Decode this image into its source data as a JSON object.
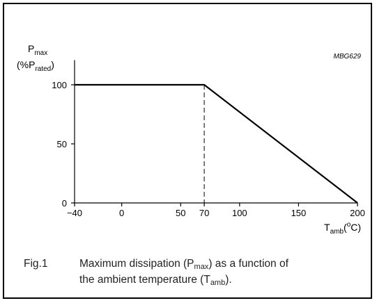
{
  "chart_data": {
    "type": "line",
    "code": "MBG629",
    "ylabel": {
      "main": "P",
      "sub": "max",
      "line2_pre": "(%P",
      "line2_sub": "rated",
      "line2_post": ")"
    },
    "xlabel": {
      "main": "T",
      "sub": "amb",
      "unit_pre": "(",
      "unit_sup": "o",
      "unit_post": "C)"
    },
    "xlim": [
      -40,
      200
    ],
    "ylim": [
      0,
      105
    ],
    "x_ticks": [
      -40,
      0,
      50,
      70,
      100,
      150,
      200
    ],
    "x_tick_labels": [
      "−40",
      "0",
      "50",
      "70",
      "100",
      "150",
      "200"
    ],
    "y_ticks": [
      0,
      50,
      100
    ],
    "y_tick_labels": [
      "0",
      "50",
      "100"
    ],
    "grid": false,
    "series": [
      {
        "x": [
          -40,
          70,
          200
        ],
        "y": [
          100,
          100,
          0
        ]
      }
    ],
    "annotations": [
      {
        "type": "dashed-vline",
        "x": 70,
        "y_top": 100
      }
    ]
  },
  "caption": {
    "number": "Fig.1",
    "line1_pre": "Maximum dissipation (P",
    "line1_sub": "max",
    "line1_post": ") as a function of",
    "line2_pre": "the ambient temperature (T",
    "line2_sub": "amb",
    "line2_post": ")."
  }
}
